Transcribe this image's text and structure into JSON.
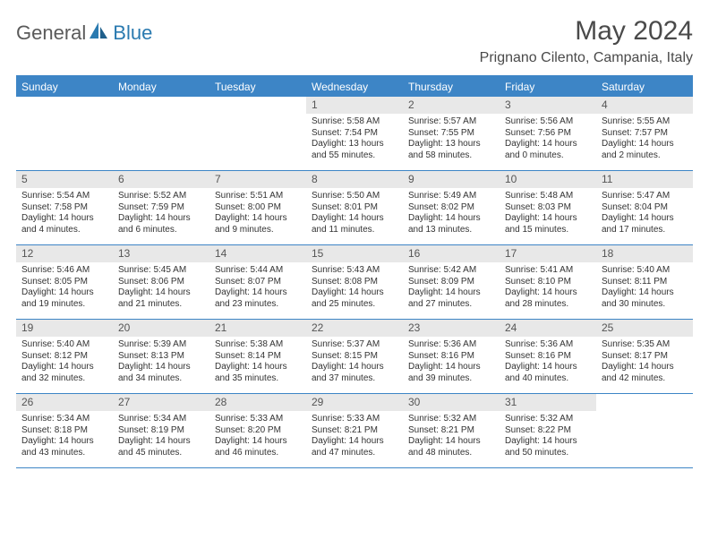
{
  "logo": {
    "text_gray": "General",
    "text_blue": "Blue"
  },
  "title": "May 2024",
  "location": "Prignano Cilento, Campania, Italy",
  "colors": {
    "header_bg": "#3d85c6",
    "header_text": "#ffffff",
    "daynum_bg": "#e8e8e8",
    "border": "#3d85c6",
    "body_text": "#333333"
  },
  "dow": [
    "Sunday",
    "Monday",
    "Tuesday",
    "Wednesday",
    "Thursday",
    "Friday",
    "Saturday"
  ],
  "weeks": [
    [
      {
        "n": "",
        "sr": "",
        "ss": "",
        "dl": ""
      },
      {
        "n": "",
        "sr": "",
        "ss": "",
        "dl": ""
      },
      {
        "n": "",
        "sr": "",
        "ss": "",
        "dl": ""
      },
      {
        "n": "1",
        "sr": "Sunrise: 5:58 AM",
        "ss": "Sunset: 7:54 PM",
        "dl": "Daylight: 13 hours and 55 minutes."
      },
      {
        "n": "2",
        "sr": "Sunrise: 5:57 AM",
        "ss": "Sunset: 7:55 PM",
        "dl": "Daylight: 13 hours and 58 minutes."
      },
      {
        "n": "3",
        "sr": "Sunrise: 5:56 AM",
        "ss": "Sunset: 7:56 PM",
        "dl": "Daylight: 14 hours and 0 minutes."
      },
      {
        "n": "4",
        "sr": "Sunrise: 5:55 AM",
        "ss": "Sunset: 7:57 PM",
        "dl": "Daylight: 14 hours and 2 minutes."
      }
    ],
    [
      {
        "n": "5",
        "sr": "Sunrise: 5:54 AM",
        "ss": "Sunset: 7:58 PM",
        "dl": "Daylight: 14 hours and 4 minutes."
      },
      {
        "n": "6",
        "sr": "Sunrise: 5:52 AM",
        "ss": "Sunset: 7:59 PM",
        "dl": "Daylight: 14 hours and 6 minutes."
      },
      {
        "n": "7",
        "sr": "Sunrise: 5:51 AM",
        "ss": "Sunset: 8:00 PM",
        "dl": "Daylight: 14 hours and 9 minutes."
      },
      {
        "n": "8",
        "sr": "Sunrise: 5:50 AM",
        "ss": "Sunset: 8:01 PM",
        "dl": "Daylight: 14 hours and 11 minutes."
      },
      {
        "n": "9",
        "sr": "Sunrise: 5:49 AM",
        "ss": "Sunset: 8:02 PM",
        "dl": "Daylight: 14 hours and 13 minutes."
      },
      {
        "n": "10",
        "sr": "Sunrise: 5:48 AM",
        "ss": "Sunset: 8:03 PM",
        "dl": "Daylight: 14 hours and 15 minutes."
      },
      {
        "n": "11",
        "sr": "Sunrise: 5:47 AM",
        "ss": "Sunset: 8:04 PM",
        "dl": "Daylight: 14 hours and 17 minutes."
      }
    ],
    [
      {
        "n": "12",
        "sr": "Sunrise: 5:46 AM",
        "ss": "Sunset: 8:05 PM",
        "dl": "Daylight: 14 hours and 19 minutes."
      },
      {
        "n": "13",
        "sr": "Sunrise: 5:45 AM",
        "ss": "Sunset: 8:06 PM",
        "dl": "Daylight: 14 hours and 21 minutes."
      },
      {
        "n": "14",
        "sr": "Sunrise: 5:44 AM",
        "ss": "Sunset: 8:07 PM",
        "dl": "Daylight: 14 hours and 23 minutes."
      },
      {
        "n": "15",
        "sr": "Sunrise: 5:43 AM",
        "ss": "Sunset: 8:08 PM",
        "dl": "Daylight: 14 hours and 25 minutes."
      },
      {
        "n": "16",
        "sr": "Sunrise: 5:42 AM",
        "ss": "Sunset: 8:09 PM",
        "dl": "Daylight: 14 hours and 27 minutes."
      },
      {
        "n": "17",
        "sr": "Sunrise: 5:41 AM",
        "ss": "Sunset: 8:10 PM",
        "dl": "Daylight: 14 hours and 28 minutes."
      },
      {
        "n": "18",
        "sr": "Sunrise: 5:40 AM",
        "ss": "Sunset: 8:11 PM",
        "dl": "Daylight: 14 hours and 30 minutes."
      }
    ],
    [
      {
        "n": "19",
        "sr": "Sunrise: 5:40 AM",
        "ss": "Sunset: 8:12 PM",
        "dl": "Daylight: 14 hours and 32 minutes."
      },
      {
        "n": "20",
        "sr": "Sunrise: 5:39 AM",
        "ss": "Sunset: 8:13 PM",
        "dl": "Daylight: 14 hours and 34 minutes."
      },
      {
        "n": "21",
        "sr": "Sunrise: 5:38 AM",
        "ss": "Sunset: 8:14 PM",
        "dl": "Daylight: 14 hours and 35 minutes."
      },
      {
        "n": "22",
        "sr": "Sunrise: 5:37 AM",
        "ss": "Sunset: 8:15 PM",
        "dl": "Daylight: 14 hours and 37 minutes."
      },
      {
        "n": "23",
        "sr": "Sunrise: 5:36 AM",
        "ss": "Sunset: 8:16 PM",
        "dl": "Daylight: 14 hours and 39 minutes."
      },
      {
        "n": "24",
        "sr": "Sunrise: 5:36 AM",
        "ss": "Sunset: 8:16 PM",
        "dl": "Daylight: 14 hours and 40 minutes."
      },
      {
        "n": "25",
        "sr": "Sunrise: 5:35 AM",
        "ss": "Sunset: 8:17 PM",
        "dl": "Daylight: 14 hours and 42 minutes."
      }
    ],
    [
      {
        "n": "26",
        "sr": "Sunrise: 5:34 AM",
        "ss": "Sunset: 8:18 PM",
        "dl": "Daylight: 14 hours and 43 minutes."
      },
      {
        "n": "27",
        "sr": "Sunrise: 5:34 AM",
        "ss": "Sunset: 8:19 PM",
        "dl": "Daylight: 14 hours and 45 minutes."
      },
      {
        "n": "28",
        "sr": "Sunrise: 5:33 AM",
        "ss": "Sunset: 8:20 PM",
        "dl": "Daylight: 14 hours and 46 minutes."
      },
      {
        "n": "29",
        "sr": "Sunrise: 5:33 AM",
        "ss": "Sunset: 8:21 PM",
        "dl": "Daylight: 14 hours and 47 minutes."
      },
      {
        "n": "30",
        "sr": "Sunrise: 5:32 AM",
        "ss": "Sunset: 8:21 PM",
        "dl": "Daylight: 14 hours and 48 minutes."
      },
      {
        "n": "31",
        "sr": "Sunrise: 5:32 AM",
        "ss": "Sunset: 8:22 PM",
        "dl": "Daylight: 14 hours and 50 minutes."
      },
      {
        "n": "",
        "sr": "",
        "ss": "",
        "dl": ""
      }
    ]
  ]
}
